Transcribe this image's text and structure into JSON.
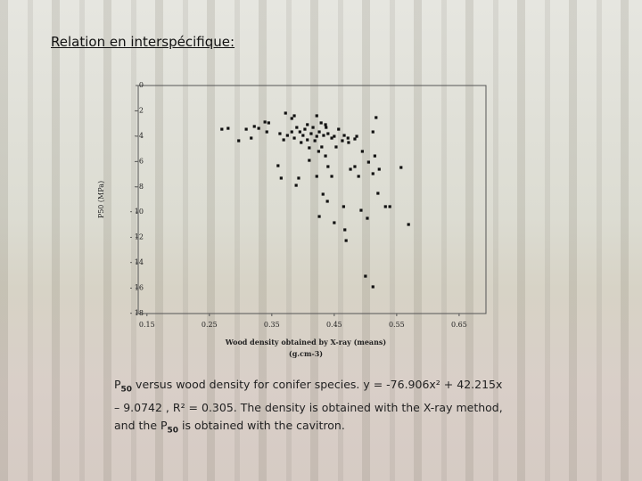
{
  "heading": "Relation en interspécifique:",
  "caption": [
    "P",
    "50",
    " versus wood density for conifer species. y = -76.906x² + 42.215x – 9.0742 , R² = 0.305. The density is obtained with the X-ray method, and the ",
    "P",
    "50",
    " is obtained with the cavitron."
  ],
  "chart_data": {
    "type": "scatter",
    "ylabel": "P50 (MPa)",
    "xlabel": [
      "Wood density obtained by X-ray (means)",
      "(g.cm-3)"
    ],
    "color": "#111111",
    "xlim": [
      0.136,
      0.693
    ],
    "xticks": [
      0.15,
      0.25,
      0.35,
      0.45,
      0.55,
      0.65
    ],
    "ylim": [
      -18,
      0
    ],
    "yticks": [
      0,
      {
        "value": -2,
        "label": "- 2"
      },
      {
        "value": -4,
        "label": "- 4"
      },
      {
        "value": -6,
        "label": "- 6"
      },
      {
        "value": -8,
        "label": "- 8"
      },
      {
        "value": -10,
        "label": "- 10"
      },
      {
        "value": -12,
        "label": "- 12"
      },
      {
        "value": -14,
        "label": "- 14"
      },
      {
        "value": -16,
        "label": "- 16"
      },
      {
        "value": -18,
        "label": "- 18"
      }
    ],
    "x": [
      0.27,
      0.28,
      0.297,
      0.309,
      0.317,
      0.322,
      0.329,
      0.339,
      0.345,
      0.342,
      0.372,
      0.382,
      0.386,
      0.363,
      0.369,
      0.375,
      0.382,
      0.386,
      0.39,
      0.395,
      0.397,
      0.4,
      0.403,
      0.407,
      0.41,
      0.413,
      0.416,
      0.419,
      0.422,
      0.425,
      0.426,
      0.429,
      0.43,
      0.433,
      0.437,
      0.44,
      0.446,
      0.45,
      0.457,
      0.463,
      0.466,
      0.472,
      0.473,
      0.483,
      0.486,
      0.495,
      0.512,
      0.517,
      0.515,
      0.522,
      0.557,
      0.36,
      0.365,
      0.389,
      0.393,
      0.41,
      0.422,
      0.44,
      0.439,
      0.426,
      0.432,
      0.446,
      0.45,
      0.465,
      0.467,
      0.469,
      0.476,
      0.483,
      0.489,
      0.493,
      0.503,
      0.505,
      0.512,
      0.52,
      0.532,
      0.539,
      0.569,
      0.5,
      0.512,
      0.422,
      0.436,
      0.407,
      0.453,
      0.436
    ],
    "values": [
      -3.45,
      -3.38,
      -4.36,
      -3.45,
      -4.15,
      -3.23,
      -3.38,
      -2.88,
      -2.95,
      -3.66,
      -2.18,
      -2.6,
      -2.39,
      -3.8,
      -4.29,
      -3.94,
      -3.66,
      -4.15,
      -3.31,
      -3.66,
      -4.5,
      -3.94,
      -3.45,
      -4.29,
      -4.92,
      -3.8,
      -3.31,
      -4.36,
      -4.01,
      -5.2,
      -3.66,
      -2.95,
      -4.85,
      -3.94,
      -3.31,
      -3.8,
      -4.15,
      -4.01,
      -3.45,
      -4.36,
      -3.94,
      -4.15,
      -4.5,
      -4.22,
      -4.01,
      -5.2,
      -3.66,
      -2.53,
      -5.56,
      -6.61,
      -6.47,
      -6.33,
      -7.31,
      -7.88,
      -7.31,
      -5.91,
      -7.17,
      -6.4,
      -9.14,
      -10.34,
      -8.58,
      -7.17,
      -10.83,
      -9.56,
      -11.39,
      -12.24,
      -6.61,
      -6.4,
      -7.17,
      -9.85,
      -10.48,
      -6.05,
      -6.96,
      -8.51,
      -9.56,
      -9.56,
      -10.97,
      -15.05,
      -15.89,
      -2.39,
      -3.09,
      -3.09,
      -4.85,
      -5.56
    ]
  }
}
